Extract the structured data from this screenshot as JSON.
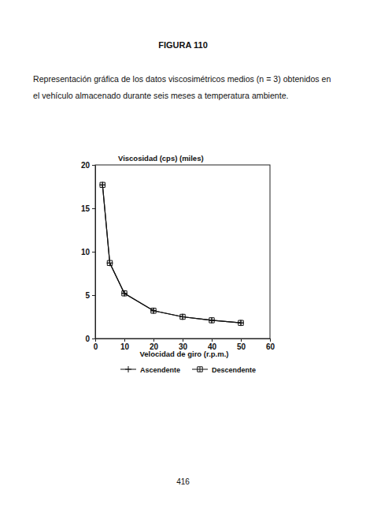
{
  "chart_data": {
    "type": "line",
    "title": "FIGURA 110",
    "subtitle": [
      "Representación gráfica de los datos viscosimétricos medios (n = 3) obtenidos en",
      "el vehículo almacenado durante seis meses a temperatura ambiente."
    ],
    "y_label": "Viscosidad (cps) (miles)",
    "x_label": "Velocidad de giro (r.p.m.)",
    "annotations": [
      "416"
    ],
    "x": [
      2.5,
      5,
      10,
      20,
      30,
      40,
      50
    ],
    "series": [
      {
        "name": "Ascendente",
        "color": "#111111",
        "marker": "plus",
        "line_style": "solid",
        "values": [
          17.7,
          8.7,
          5.2,
          3.2,
          2.5,
          2.1,
          1.8
        ]
      },
      {
        "name": "Descendente",
        "color": "#111111",
        "marker": "square-cross",
        "line_style": "solid",
        "values": [
          17.7,
          8.7,
          5.2,
          3.2,
          2.5,
          2.1,
          1.8
        ]
      }
    ],
    "xlim": [
      0,
      60
    ],
    "xticks": [
      0,
      10,
      20,
      30,
      40,
      50,
      60
    ],
    "ylim": [
      0,
      20
    ],
    "yticks": [
      0,
      5,
      10,
      15,
      20
    ],
    "grid": false,
    "legend": "bottom"
  }
}
